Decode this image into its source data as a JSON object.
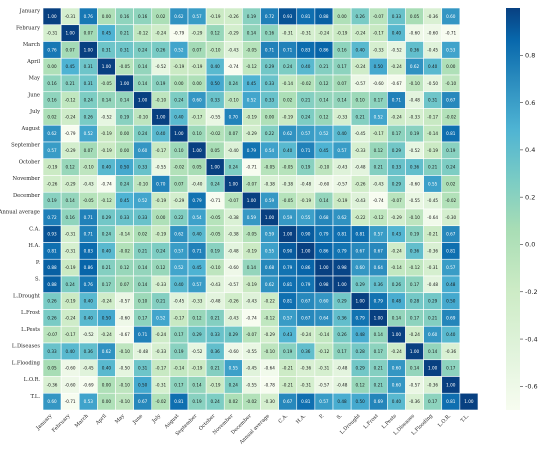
{
  "chart_data": {
    "type": "heatmap",
    "labels": [
      "January",
      "February",
      "March",
      "April",
      "May",
      "June",
      "July",
      "August",
      "September",
      "October",
      "November",
      "December",
      "Annual average",
      "C.A.",
      "H.A.",
      "P.",
      "S.",
      "L.Drought",
      "L.Frost",
      "L.Pests",
      "L.Diseases",
      "L.Flooding",
      "L.O.R.",
      "T.L."
    ],
    "values": [
      [
        1.0,
        -0.31,
        0.76,
        0.0,
        0.16,
        0.16,
        0.02,
        0.62,
        0.57,
        -0.19,
        -0.26,
        0.19,
        0.72,
        0.93,
        0.81,
        0.88,
        0.0,
        0.26,
        -0.07,
        0.33,
        0.05,
        -0.36,
        0.6,
        null
      ],
      [
        -0.31,
        1.0,
        0.07,
        0.45,
        0.21,
        -0.12,
        -0.24,
        -0.79,
        -0.29,
        0.12,
        -0.29,
        0.14,
        0.16,
        -0.31,
        -0.31,
        -0.24,
        -0.19,
        -0.24,
        -0.17,
        0.4,
        -0.6,
        -0.6,
        -0.71,
        null
      ],
      [
        0.76,
        0.07,
        1.0,
        0.31,
        0.31,
        0.24,
        0.26,
        0.52,
        0.07,
        -0.1,
        -0.43,
        -0.05,
        0.71,
        0.71,
        0.83,
        0.86,
        0.16,
        0.4,
        -0.33,
        -0.52,
        0.36,
        -0.45,
        0.53,
        null
      ],
      [
        0.0,
        0.45,
        0.31,
        1.0,
        -0.05,
        0.14,
        -0.52,
        -0.19,
        -0.19,
        0.4,
        -0.74,
        -0.12,
        0.29,
        0.24,
        0.4,
        0.21,
        0.17,
        -0.24,
        0.5,
        -0.24,
        0.62,
        0.4,
        0.0,
        null
      ],
      [
        0.16,
        0.21,
        0.31,
        -0.05,
        1.0,
        0.14,
        0.19,
        0.0,
        0.0,
        0.5,
        0.24,
        0.45,
        0.33,
        -0.14,
        -0.02,
        0.12,
        0.07,
        -0.57,
        -0.6,
        -0.67,
        -0.1,
        -0.5,
        -0.1,
        null
      ],
      [
        0.16,
        -0.12,
        0.24,
        0.14,
        0.14,
        1.0,
        -0.1,
        0.24,
        0.6,
        0.33,
        -0.1,
        0.52,
        0.33,
        0.02,
        0.21,
        0.14,
        0.14,
        0.1,
        0.17,
        0.71,
        -0.48,
        0.31,
        0.67,
        null
      ],
      [
        0.02,
        -0.24,
        0.26,
        -0.52,
        0.19,
        -0.1,
        1.0,
        0.4,
        -0.17,
        -0.55,
        0.7,
        -0.19,
        0.0,
        -0.19,
        0.24,
        0.12,
        -0.33,
        0.21,
        0.52,
        -0.24,
        -0.33,
        -0.17,
        -0.02,
        null
      ],
      [
        0.62,
        -0.79,
        0.52,
        -0.19,
        0.0,
        0.24,
        0.4,
        1.0,
        0.1,
        -0.02,
        0.07,
        -0.29,
        0.22,
        0.62,
        0.57,
        0.52,
        0.4,
        -0.45,
        -0.17,
        0.17,
        0.19,
        -0.14,
        0.81,
        null
      ],
      [
        0.57,
        -0.29,
        0.07,
        -0.19,
        0.0,
        0.6,
        -0.17,
        0.1,
        1.0,
        0.05,
        -0.4,
        0.79,
        0.54,
        0.4,
        0.71,
        0.45,
        0.57,
        -0.33,
        0.12,
        0.29,
        -0.52,
        -0.19,
        0.19,
        null
      ],
      [
        -0.19,
        0.12,
        -0.1,
        0.4,
        0.5,
        0.33,
        -0.55,
        -0.02,
        0.05,
        1.0,
        0.24,
        -0.71,
        -0.05,
        -0.05,
        0.19,
        -0.1,
        -0.43,
        -0.48,
        0.21,
        0.33,
        0.36,
        0.21,
        0.24,
        null
      ],
      [
        -0.26,
        -0.29,
        -0.43,
        -0.74,
        0.24,
        -0.1,
        0.7,
        0.07,
        -0.4,
        0.24,
        1.0,
        -0.07,
        -0.38,
        -0.38,
        -0.48,
        -0.6,
        -0.57,
        -0.26,
        -0.43,
        0.29,
        -0.6,
        0.55,
        0.02,
        null
      ],
      [
        0.19,
        0.14,
        -0.05,
        -0.12,
        0.45,
        0.52,
        -0.19,
        -0.29,
        0.79,
        -0.71,
        -0.07,
        1.0,
        0.59,
        -0.05,
        -0.19,
        0.14,
        -0.19,
        -0.43,
        -0.74,
        -0.07,
        -0.55,
        -0.45,
        -0.02,
        null
      ],
      [
        0.72,
        0.16,
        0.71,
        0.29,
        0.33,
        0.33,
        0.0,
        0.22,
        0.54,
        -0.05,
        -0.38,
        0.59,
        1.0,
        0.59,
        0.55,
        0.68,
        0.62,
        -0.22,
        -0.12,
        -0.29,
        -0.1,
        -0.64,
        -0.3,
        null
      ],
      [
        0.93,
        -0.31,
        0.71,
        0.24,
        -0.14,
        0.02,
        -0.19,
        0.62,
        0.4,
        -0.05,
        -0.38,
        -0.05,
        0.59,
        1.0,
        0.9,
        0.79,
        0.81,
        0.81,
        0.57,
        0.43,
        0.19,
        -0.21,
        0.67,
        null
      ],
      [
        0.81,
        -0.31,
        0.83,
        0.4,
        -0.02,
        0.21,
        0.24,
        0.57,
        0.71,
        0.19,
        -0.48,
        -0.19,
        0.55,
        0.9,
        1.0,
        0.86,
        0.79,
        0.67,
        0.67,
        -0.24,
        0.36,
        -0.36,
        0.81,
        null
      ],
      [
        0.88,
        -0.19,
        0.86,
        0.21,
        0.12,
        0.14,
        0.12,
        0.52,
        0.45,
        -0.1,
        -0.6,
        0.14,
        0.68,
        0.79,
        0.86,
        1.0,
        0.98,
        0.6,
        0.64,
        -0.14,
        -0.12,
        -0.31,
        0.57,
        null
      ],
      [
        0.88,
        0.24,
        0.76,
        0.17,
        0.07,
        0.14,
        -0.33,
        0.4,
        0.57,
        -0.43,
        -0.57,
        -0.19,
        0.62,
        0.81,
        0.79,
        0.98,
        1.0,
        0.29,
        0.36,
        0.26,
        0.17,
        -0.48,
        0.48,
        null
      ],
      [
        0.26,
        -0.19,
        0.4,
        -0.24,
        -0.57,
        0.1,
        0.21,
        -0.45,
        -0.33,
        -0.48,
        -0.26,
        -0.43,
        -0.22,
        0.81,
        0.67,
        0.6,
        0.29,
        1.0,
        0.79,
        0.48,
        0.28,
        0.29,
        0.5,
        null
      ],
      [
        0.26,
        -0.24,
        0.4,
        0.5,
        -0.6,
        0.17,
        0.52,
        -0.17,
        0.12,
        0.21,
        -0.43,
        -0.74,
        -0.12,
        0.57,
        0.67,
        0.64,
        0.36,
        0.79,
        1.0,
        0.14,
        0.17,
        0.21,
        0.69,
        null
      ],
      [
        -0.07,
        -0.17,
        -0.52,
        -0.24,
        -0.67,
        0.71,
        -0.24,
        0.17,
        0.29,
        0.33,
        0.29,
        -0.07,
        -0.29,
        0.43,
        -0.24,
        -0.14,
        0.26,
        0.48,
        0.14,
        1.0,
        -0.24,
        0.6,
        0.4,
        null
      ],
      [
        0.33,
        0.4,
        0.36,
        0.62,
        -0.1,
        -0.48,
        -0.33,
        0.19,
        -0.52,
        0.36,
        -0.6,
        -0.55,
        -0.1,
        0.19,
        0.36,
        -0.12,
        0.17,
        0.28,
        0.17,
        -0.24,
        1.0,
        0.14,
        -0.36,
        null
      ],
      [
        0.05,
        -0.6,
        -0.45,
        0.4,
        -0.5,
        0.31,
        -0.17,
        -0.14,
        -0.19,
        0.21,
        0.55,
        -0.45,
        -0.64,
        -0.21,
        -0.36,
        -0.31,
        -0.48,
        0.29,
        0.21,
        0.6,
        0.14,
        1.0,
        0.17,
        null
      ],
      [
        -0.36,
        -0.6,
        -0.69,
        0.0,
        -0.1,
        0.5,
        -0.31,
        0.17,
        0.14,
        -0.19,
        0.24,
        -0.55,
        -0.78,
        -0.21,
        -0.31,
        -0.57,
        -0.48,
        0.12,
        0.21,
        0.6,
        -0.57,
        -0.36,
        1.0,
        null
      ],
      [
        0.6,
        -0.71,
        0.53,
        0.0,
        -0.1,
        0.67,
        -0.02,
        0.81,
        0.19,
        0.24,
        0.02,
        -0.02,
        -0.3,
        0.67,
        0.81,
        0.57,
        0.48,
        0.5,
        0.69,
        0.4,
        -0.36,
        0.17,
        0.81,
        1.0
      ]
    ],
    "colorbar": {
      "min": -0.7,
      "max": 1.0,
      "ticks": [
        "0.8",
        "0.6",
        "0.4",
        "0.2",
        "0.0",
        "-0.2",
        "-0.4",
        "-0.6"
      ],
      "colormap": "GnBu"
    },
    "annotated": true,
    "grid": true
  }
}
